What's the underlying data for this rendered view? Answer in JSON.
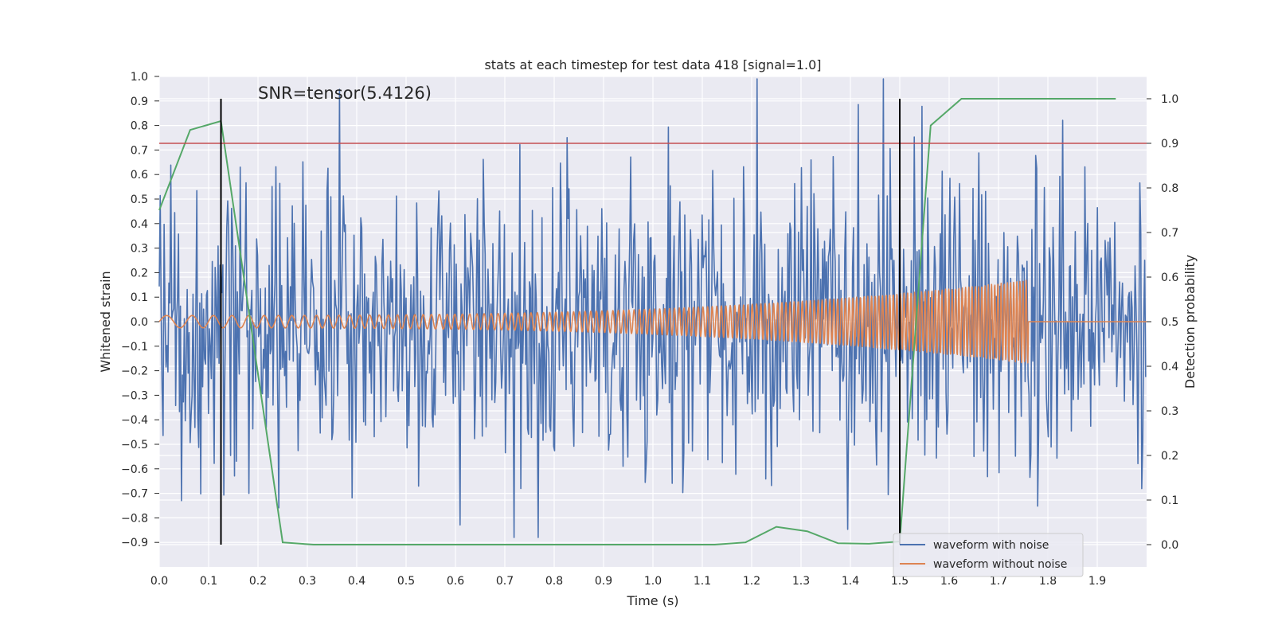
{
  "chart_data": {
    "type": "line",
    "title": "stats at each timestep for test data 418 [signal=1.0]",
    "xlabel": "Time (s)",
    "ylabel_left": "Whitened strain",
    "ylabel_right": "Detection probability",
    "xlim": [
      0.0,
      2.0
    ],
    "ylim_left": [
      -1.0,
      1.0
    ],
    "ylim_right": [
      -0.05,
      1.05
    ],
    "x_ticks": [
      "0.0",
      "0.1",
      "0.2",
      "0.3",
      "0.4",
      "0.5",
      "0.6",
      "0.7",
      "0.8",
      "0.9",
      "1.0",
      "1.1",
      "1.2",
      "1.3",
      "1.4",
      "1.5",
      "1.6",
      "1.7",
      "1.8",
      "1.9"
    ],
    "y_left_ticks": [
      "1.0",
      "0.9",
      "0.8",
      "0.7",
      "0.6",
      "0.5",
      "0.4",
      "0.3",
      "0.2",
      "0.1",
      "0.0",
      "−0.1",
      "−0.2",
      "−0.3",
      "−0.4",
      "−0.5",
      "−0.6",
      "−0.7",
      "−0.8",
      "−0.9"
    ],
    "y_right_ticks": [
      "1.0",
      "0.9",
      "0.8",
      "0.7",
      "0.6",
      "0.5",
      "0.4",
      "0.3",
      "0.2",
      "0.1",
      "0.0"
    ],
    "annotation": "SNR=tensor(5.4126)",
    "legend": [
      "waveform with noise",
      "waveform without noise"
    ],
    "grid": true,
    "legend_position": "lower-right",
    "colors": {
      "noise": "#4c72b0",
      "clean": "#dd8452",
      "prob": "#55a868",
      "threshold": "#c44e52",
      "marker": "#000000",
      "plot_bg": "#eaeaf2",
      "grid": "#ffffff",
      "text": "#262626"
    },
    "series": [
      {
        "name": "detection probability",
        "axis": "right",
        "x": [
          0.0,
          0.0625,
          0.125,
          0.25,
          0.3125,
          1.125,
          1.1875,
          1.25,
          1.3125,
          1.375,
          1.4375,
          1.5,
          1.5625,
          1.625,
          1.9375
        ],
        "y": [
          0.75,
          0.93,
          0.95,
          0.005,
          0.0,
          0.0,
          0.005,
          0.04,
          0.03,
          0.003,
          0.002,
          0.007,
          0.94,
          1.0,
          1.0
        ]
      },
      {
        "name": "waveform without noise",
        "axis": "left",
        "description_params": {
          "t_end": 1.76,
          "amp_start": 0.025,
          "amp_end": 0.17,
          "f_start": 16,
          "f_end": 160
        }
      },
      {
        "name": "waveform with noise",
        "axis": "left",
        "description_params": {
          "sigma": 0.3,
          "n_samples": 1024
        }
      }
    ],
    "threshold_right": 0.9,
    "vlines_x": [
      0.125,
      1.5
    ]
  }
}
